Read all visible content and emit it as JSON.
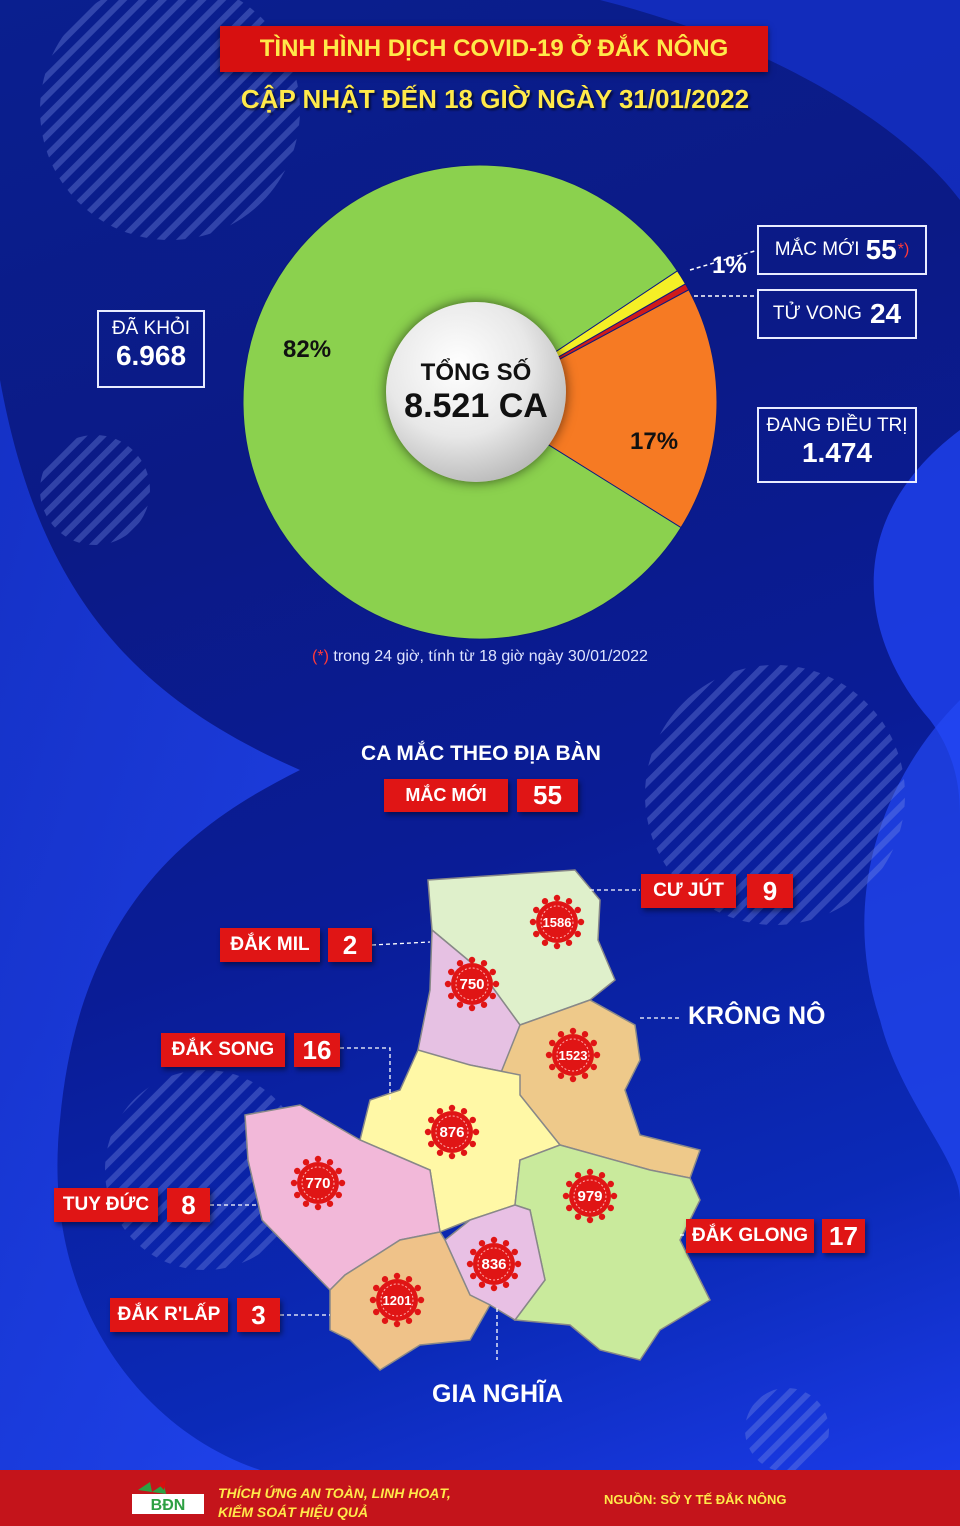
{
  "title": "TÌNH HÌNH DỊCH COVID-19 Ở ĐẮK NÔNG",
  "subtitle": "CẬP NHẬT ĐẾN 18 GIỜ NGÀY 31/01/2022",
  "colors": {
    "recovered": "#8bd14e",
    "treating": "#f67a23",
    "deaths": "#d01a1a",
    "new": "#f5ef26",
    "accent_red": "#e01515",
    "accent_yellow": "#ffe94a"
  },
  "center": {
    "label": "TỔNG SỐ",
    "value": "8.521 CA"
  },
  "chart_data": {
    "type": "pie",
    "slices": [
      {
        "label": "ĐÃ KHỎI",
        "value": 6968,
        "percent_label": "82%"
      },
      {
        "label": "ĐANG ĐIỀU TRỊ",
        "value": 1474,
        "percent_label": "17%"
      },
      {
        "label": "TỬ VONG",
        "value": 24,
        "percent_label": ""
      },
      {
        "label": "MẮC MỚI",
        "value": 55,
        "percent_label": "1%"
      }
    ],
    "total": "8.521 CA"
  },
  "stats": {
    "recovered": {
      "label": "ĐÃ KHỎI",
      "value": "6.968"
    },
    "treating": {
      "label": "ĐANG ĐIỀU TRỊ",
      "value": "1.474"
    },
    "deaths": {
      "label": "TỬ VONG",
      "value": "24"
    },
    "new": {
      "label": "MẮC MỚI",
      "value": "55",
      "mark": "*)"
    }
  },
  "pct": {
    "recovered": "82%",
    "treating": "17%",
    "small": "1%"
  },
  "footnote": {
    "star": "(*)",
    "text": " trong 24 giờ, tính từ 18 giờ ngày 30/01/2022"
  },
  "section": {
    "title": "CA MẮC THEO ĐỊA BÀN",
    "new_label": "MẮC MỚI",
    "new_value": "55"
  },
  "districts": [
    {
      "name": "CƯ JÚT",
      "new": "9",
      "total": "1586"
    },
    {
      "name": "ĐẮK MIL",
      "new": "2",
      "total": "750"
    },
    {
      "name": "KRÔNG NÔ",
      "new": "",
      "total": "1523"
    },
    {
      "name": "ĐẮK SONG",
      "new": "16",
      "total": "876"
    },
    {
      "name": "TUY ĐỨC",
      "new": "8",
      "total": "770"
    },
    {
      "name": "ĐẮK GLONG",
      "new": "17",
      "total": "979"
    },
    {
      "name": "GIA NGHĨA",
      "new": "",
      "total": "836"
    },
    {
      "name": "ĐẮK R'LẤP",
      "new": "3",
      "total": "1201"
    }
  ],
  "footer": {
    "logo_text": "BĐN",
    "slogan_1": "THÍCH ỨNG AN TOÀN, LINH HOẠT,",
    "slogan_2": "KIỂM SOÁT HIỆU QUẢ",
    "source": "NGUỒN: SỞ Y TẾ ĐẮK NÔNG"
  }
}
